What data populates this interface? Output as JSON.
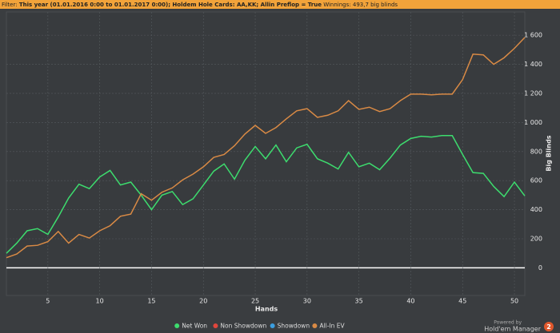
{
  "filter_label": "Filter:",
  "filter": "This year (01.01.2016 0:00 to 01.01.2017 0:00); Holdem Hole Cards: AA,KK; Allin Preflop = True",
  "winnings": "Winnings: 493,7 big blinds",
  "powered_by": "Powered by",
  "brand": "Hold'em Manager",
  "brand_version": "2",
  "chart_data": {
    "type": "line",
    "x_label": "Hands",
    "y_label": "Big Blinds",
    "x": [
      1,
      2,
      3,
      4,
      5,
      6,
      7,
      8,
      9,
      10,
      11,
      12,
      13,
      14,
      15,
      16,
      17,
      18,
      19,
      20,
      21,
      22,
      23,
      24,
      25,
      26,
      27,
      28,
      29,
      30,
      31,
      32,
      33,
      34,
      35,
      36,
      37,
      38,
      39,
      40,
      41,
      42,
      43,
      44,
      45,
      46,
      47,
      48,
      49,
      50,
      51
    ],
    "xlim": [
      1,
      51
    ],
    "xticks": [
      5,
      10,
      15,
      20,
      25,
      30,
      35,
      40,
      45,
      50
    ],
    "ylim": [
      -190,
      1760
    ],
    "yticks": [
      0,
      200,
      400,
      600,
      800,
      {
        "value": 1000,
        "label": "1 000"
      },
      {
        "value": 1200,
        "label": "1 200"
      },
      {
        "value": 1400,
        "label": "1 400"
      },
      {
        "value": 1600,
        "label": "1 600"
      }
    ],
    "grid": true,
    "series": [
      {
        "name": "Net Won",
        "color": "#3ddc6e",
        "values": [
          100,
          170,
          255,
          270,
          230,
          350,
          480,
          575,
          545,
          625,
          670,
          570,
          590,
          500,
          400,
          500,
          525,
          435,
          475,
          570,
          665,
          715,
          610,
          740,
          835,
          750,
          845,
          730,
          825,
          850,
          750,
          720,
          680,
          795,
          695,
          720,
          675,
          755,
          845,
          890,
          905,
          900,
          910,
          910,
          780,
          655,
          650,
          560,
          490,
          590,
          495
        ]
      },
      {
        "name": "Non Showdown",
        "color": "#e0463c"
      },
      {
        "name": "Showdown",
        "color": "#3b9ee0"
      },
      {
        "name": "All-In EV",
        "color": "#d98a45",
        "values": [
          70,
          95,
          150,
          155,
          180,
          250,
          170,
          230,
          205,
          255,
          290,
          355,
          370,
          510,
          465,
          520,
          550,
          605,
          645,
          695,
          760,
          780,
          840,
          920,
          980,
          925,
          965,
          1025,
          1080,
          1095,
          1035,
          1050,
          1080,
          1150,
          1090,
          1105,
          1075,
          1095,
          1150,
          1195,
          1195,
          1190,
          1195,
          1195,
          1295,
          1470,
          1465,
          1400,
          1445,
          1510,
          1585
        ]
      }
    ]
  }
}
